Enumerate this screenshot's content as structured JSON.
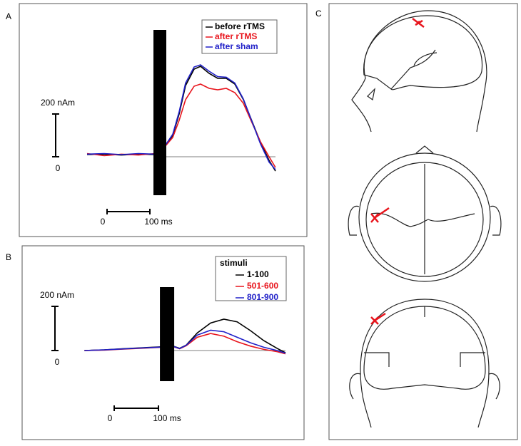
{
  "panels": [
    "A",
    "B",
    "C"
  ],
  "chart_data": [
    {
      "type": "line",
      "x": [
        -170,
        -130,
        -90,
        -50,
        -10,
        15,
        30,
        45,
        60,
        80,
        95,
        115,
        135,
        155,
        175,
        195,
        215,
        235,
        255,
        270
      ],
      "series": [
        {
          "name": "before rTMS",
          "color": "#000000",
          "values": [
            10,
            12,
            8,
            12,
            10,
            57,
            100,
            200,
            333,
            410,
            423,
            390,
            367,
            367,
            340,
            267,
            167,
            67,
            -17,
            -67
          ]
        },
        {
          "name": "after rTMS",
          "color": "#e8141c",
          "values": [
            15,
            5,
            12,
            8,
            15,
            55,
            90,
            170,
            267,
            330,
            340,
            320,
            313,
            320,
            300,
            250,
            160,
            70,
            0,
            -50
          ]
        },
        {
          "name": "after sham",
          "color": "#2020c8",
          "values": [
            12,
            15,
            10,
            15,
            12,
            60,
            105,
            210,
            345,
            420,
            430,
            400,
            375,
            372,
            345,
            270,
            165,
            60,
            -25,
            -60
          ]
        }
      ],
      "xlim": [
        -250,
        320
      ],
      "ylim": [
        -200,
        600
      ],
      "xticks": [
        0,
        {
          "value": 100,
          "label": "100 ms"
        }
      ],
      "yticks": [
        0,
        {
          "value": 200,
          "label": "200 nAm"
        }
      ]
    },
    {
      "type": "line",
      "legend_title": "stimuli",
      "x": [
        -185,
        -140,
        -100,
        -60,
        -20,
        15,
        30,
        45,
        70,
        100,
        130,
        160,
        190,
        220,
        250,
        269
      ],
      "series": [
        {
          "name": "1-100",
          "color": "#000000",
          "values": [
            0,
            3,
            8,
            12,
            16,
            20,
            10,
            25,
            80,
            125,
            142,
            130,
            90,
            45,
            10,
            -10
          ]
        },
        {
          "name": "501-600",
          "color": "#e8141c",
          "values": [
            0,
            2,
            6,
            10,
            14,
            18,
            8,
            22,
            60,
            77,
            65,
            40,
            20,
            5,
            -5,
            -15
          ]
        },
        {
          "name": "801-900",
          "color": "#2020c8",
          "values": [
            0,
            3,
            7,
            11,
            15,
            19,
            9,
            24,
            70,
            92,
            85,
            60,
            35,
            15,
            0,
            -12
          ]
        }
      ],
      "xlim": [
        -200,
        290
      ],
      "ylim": [
        -150,
        350
      ],
      "xticks": [
        0,
        {
          "value": 100,
          "label": "100 ms"
        }
      ],
      "yticks": [
        0,
        {
          "value": 200,
          "label": "200 nAm"
        }
      ]
    }
  ]
}
